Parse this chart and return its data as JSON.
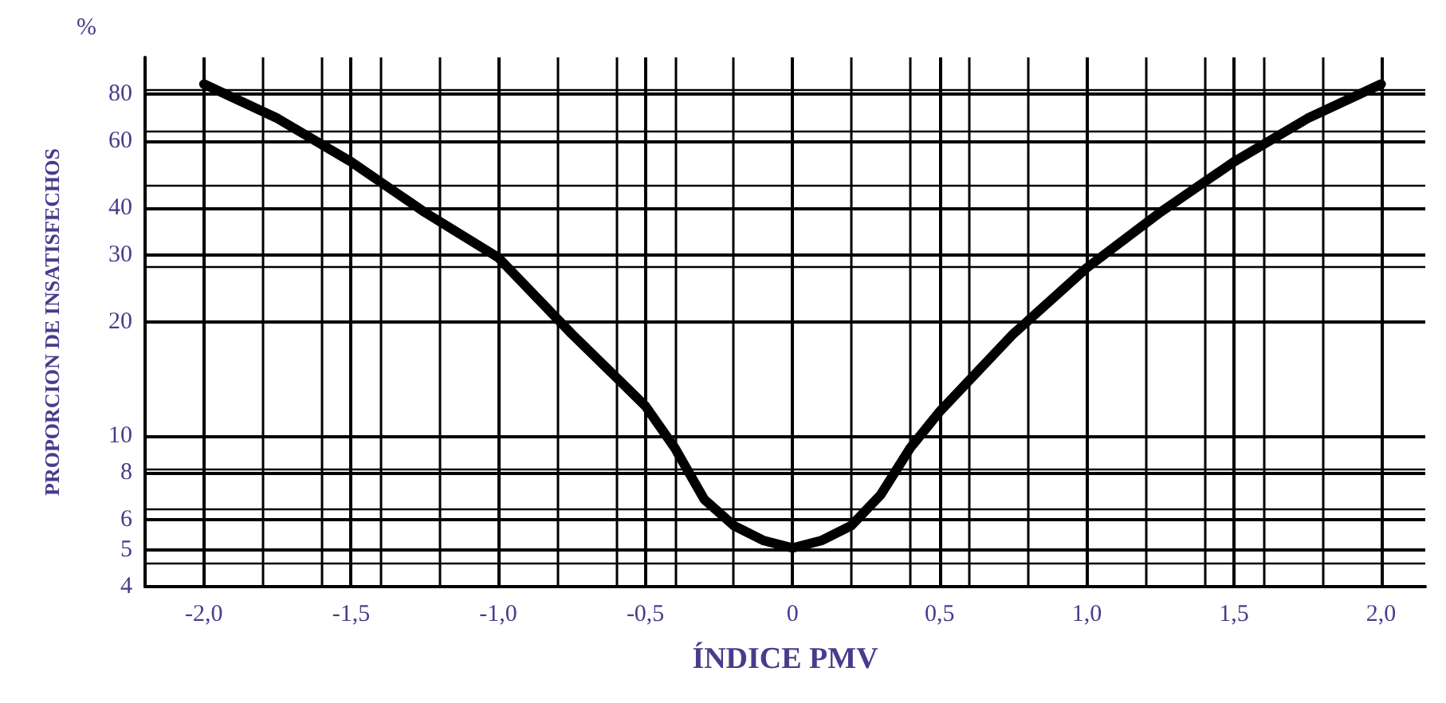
{
  "chart_data": {
    "type": "line",
    "xlabel": "ÍNDICE PMV",
    "ylabel": "PROPORCION DE INSATISFECHOS",
    "annotations": [
      "%"
    ],
    "log": "y",
    "grid": true,
    "marker": "none",
    "line_style": "solid",
    "x": [
      -2.0,
      -1.75,
      -1.5,
      -1.25,
      -1.0,
      -0.75,
      -0.5,
      -0.4,
      -0.3,
      -0.2,
      -0.1,
      0,
      0.1,
      0.2,
      0.3,
      0.4,
      0.5,
      0.75,
      1.0,
      1.25,
      1.5,
      1.75,
      2.0
    ],
    "series": [
      {
        "color": "#000000",
        "values": [
          85,
          69,
          53,
          39,
          29.6,
          18.6,
          12,
          9.3,
          6.8,
          5.8,
          5.3,
          5.06,
          5.3,
          5.8,
          7.0,
          9.3,
          11.6,
          18.6,
          27.8,
          39,
          53,
          69,
          85
        ]
      }
    ],
    "xlim": [
      -2.2,
      2.15
    ],
    "ylim": [
      4,
      100
    ],
    "xticks": [
      {
        "value": -2,
        "label": "-2,0"
      },
      {
        "value": -1.5,
        "label": "-1,5"
      },
      {
        "value": -1,
        "label": "-1,0"
      },
      {
        "value": -0.5,
        "label": "-0,5"
      },
      {
        "value": 0,
        "label": "0"
      },
      {
        "value": 0.5,
        "label": "0,5"
      },
      {
        "value": 1,
        "label": "1,0"
      },
      {
        "value": 1.5,
        "label": "1,5"
      },
      {
        "value": 2,
        "label": "2,0"
      }
    ],
    "yticks": [
      4,
      5,
      6,
      8,
      10,
      20,
      30,
      40,
      60,
      80
    ]
  }
}
